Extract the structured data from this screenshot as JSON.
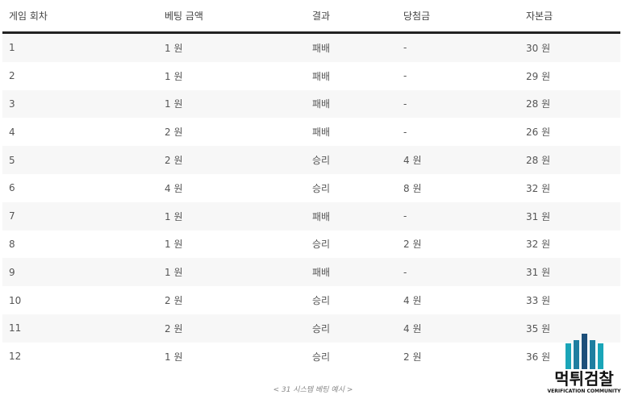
{
  "table": {
    "headers": [
      "게임 회차",
      "베팅 금액",
      "결과",
      "당첨금",
      "자본금"
    ],
    "rows": [
      [
        "1",
        "1 원",
        "패배",
        "-",
        "30 원"
      ],
      [
        "2",
        "1 원",
        "패배",
        "-",
        "29 원"
      ],
      [
        "3",
        "1 원",
        "패배",
        "-",
        "28 원"
      ],
      [
        "4",
        "2 원",
        "패배",
        "-",
        "26 원"
      ],
      [
        "5",
        "2 원",
        "승리",
        "4 원",
        "28 원"
      ],
      [
        "6",
        "4 원",
        "승리",
        "8 원",
        "32 원"
      ],
      [
        "7",
        "1 원",
        "패배",
        "-",
        "31 원"
      ],
      [
        "8",
        "1 원",
        "승리",
        "2 원",
        "32 원"
      ],
      [
        "9",
        "1 원",
        "패배",
        "-",
        "31 원"
      ],
      [
        "10",
        "2 원",
        "승리",
        "4 원",
        "33 원"
      ],
      [
        "11",
        "2 원",
        "승리",
        "4 원",
        "35 원"
      ],
      [
        "12",
        "1 원",
        "승리",
        "2 원",
        "36 원"
      ]
    ]
  },
  "caption": "< 31 시스템 베팅 예시 >",
  "logo": {
    "name": "먹튀검찰",
    "sub": "VERIFICATION COMMUNITY",
    "colors": [
      "#1aa5b8",
      "#1f7ea0",
      "#1d4f7a"
    ]
  }
}
